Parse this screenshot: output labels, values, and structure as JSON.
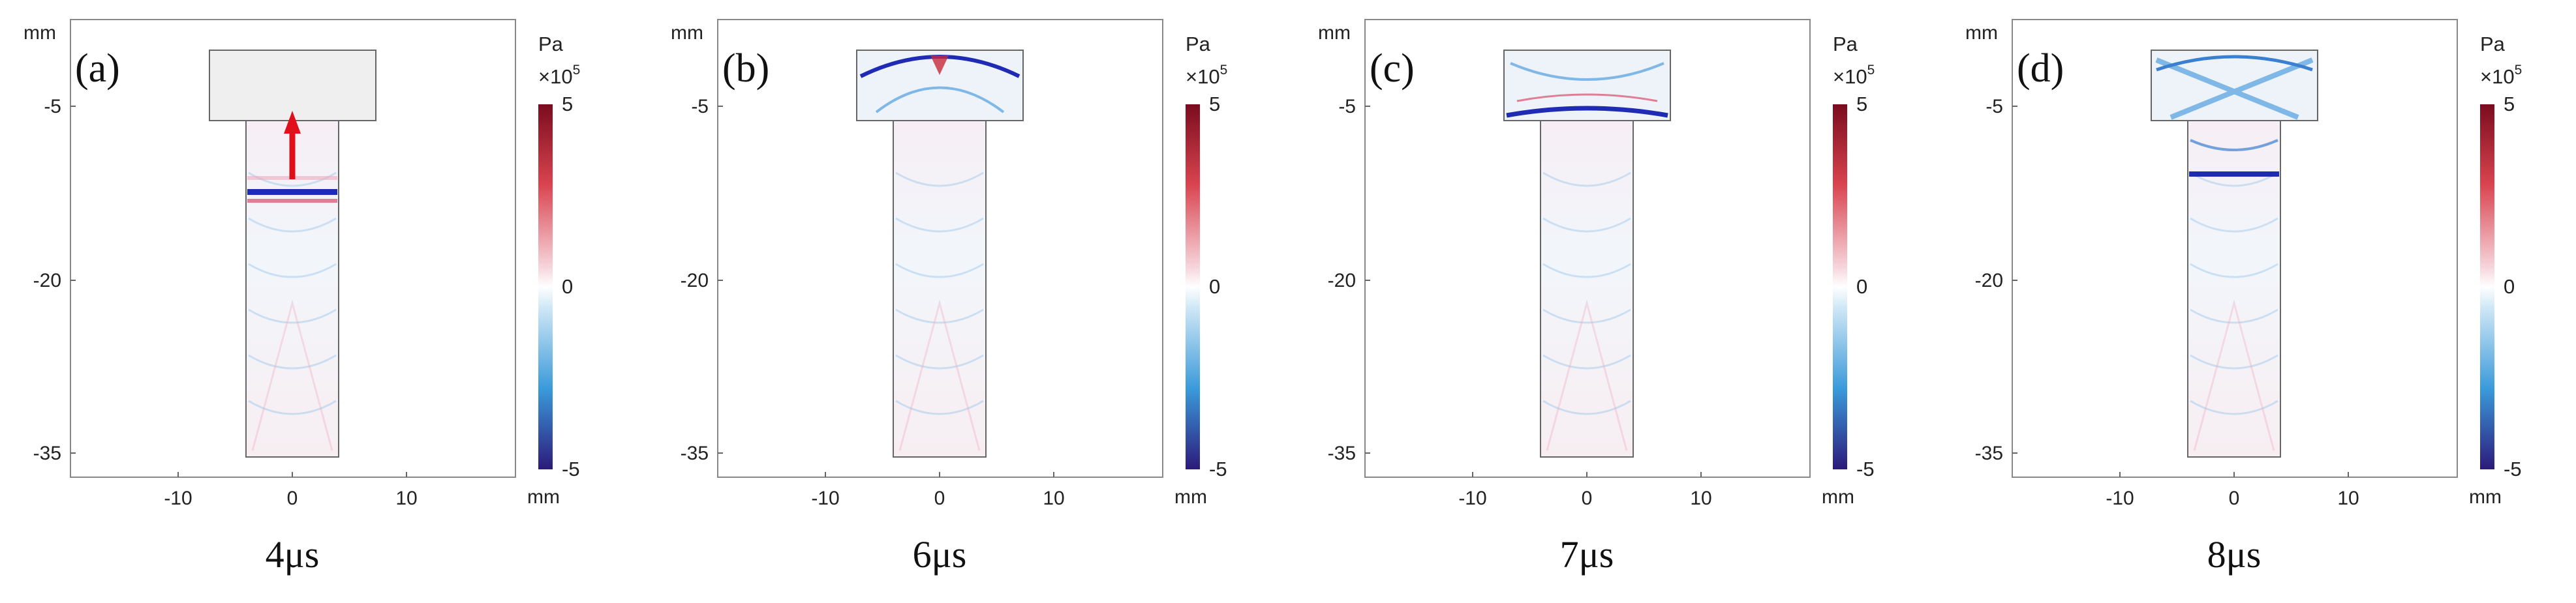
{
  "figure": {
    "axis_unit": "mm",
    "y_ticks": [
      "-5",
      "-20",
      "-35"
    ],
    "x_ticks": [
      "-10",
      "0",
      "10"
    ],
    "colorbar": {
      "unit": "Pa",
      "scale_base": "×10",
      "scale_exp": "5",
      "ticks": [
        "5",
        "0",
        "-5"
      ],
      "colors": {
        "max": "#7a0c1e",
        "mid": "#ffffff",
        "min": "#2c1a7a",
        "warm": "#d9444f",
        "cool": "#3a9ad9"
      }
    },
    "panels": [
      {
        "letter": "(a)",
        "time": "4μs",
        "wavefront": "bar-low",
        "top_filled": true,
        "arrow": true
      },
      {
        "letter": "(b)",
        "time": "6μs",
        "wavefront": "arc-top",
        "top_filled": false,
        "arrow": false
      },
      {
        "letter": "(c)",
        "time": "7μs",
        "wavefront": "bar-mid",
        "top_filled": false,
        "arrow": false
      },
      {
        "letter": "(d)",
        "time": "8μs",
        "wavefront": "x-pattern",
        "top_filled": false,
        "arrow": false
      }
    ],
    "colors": {
      "arrow": "#e0101a",
      "wave_strong": "#1f2bb5",
      "wave_light": "#7fb8e6",
      "pink": "#f0a9bd"
    }
  }
}
